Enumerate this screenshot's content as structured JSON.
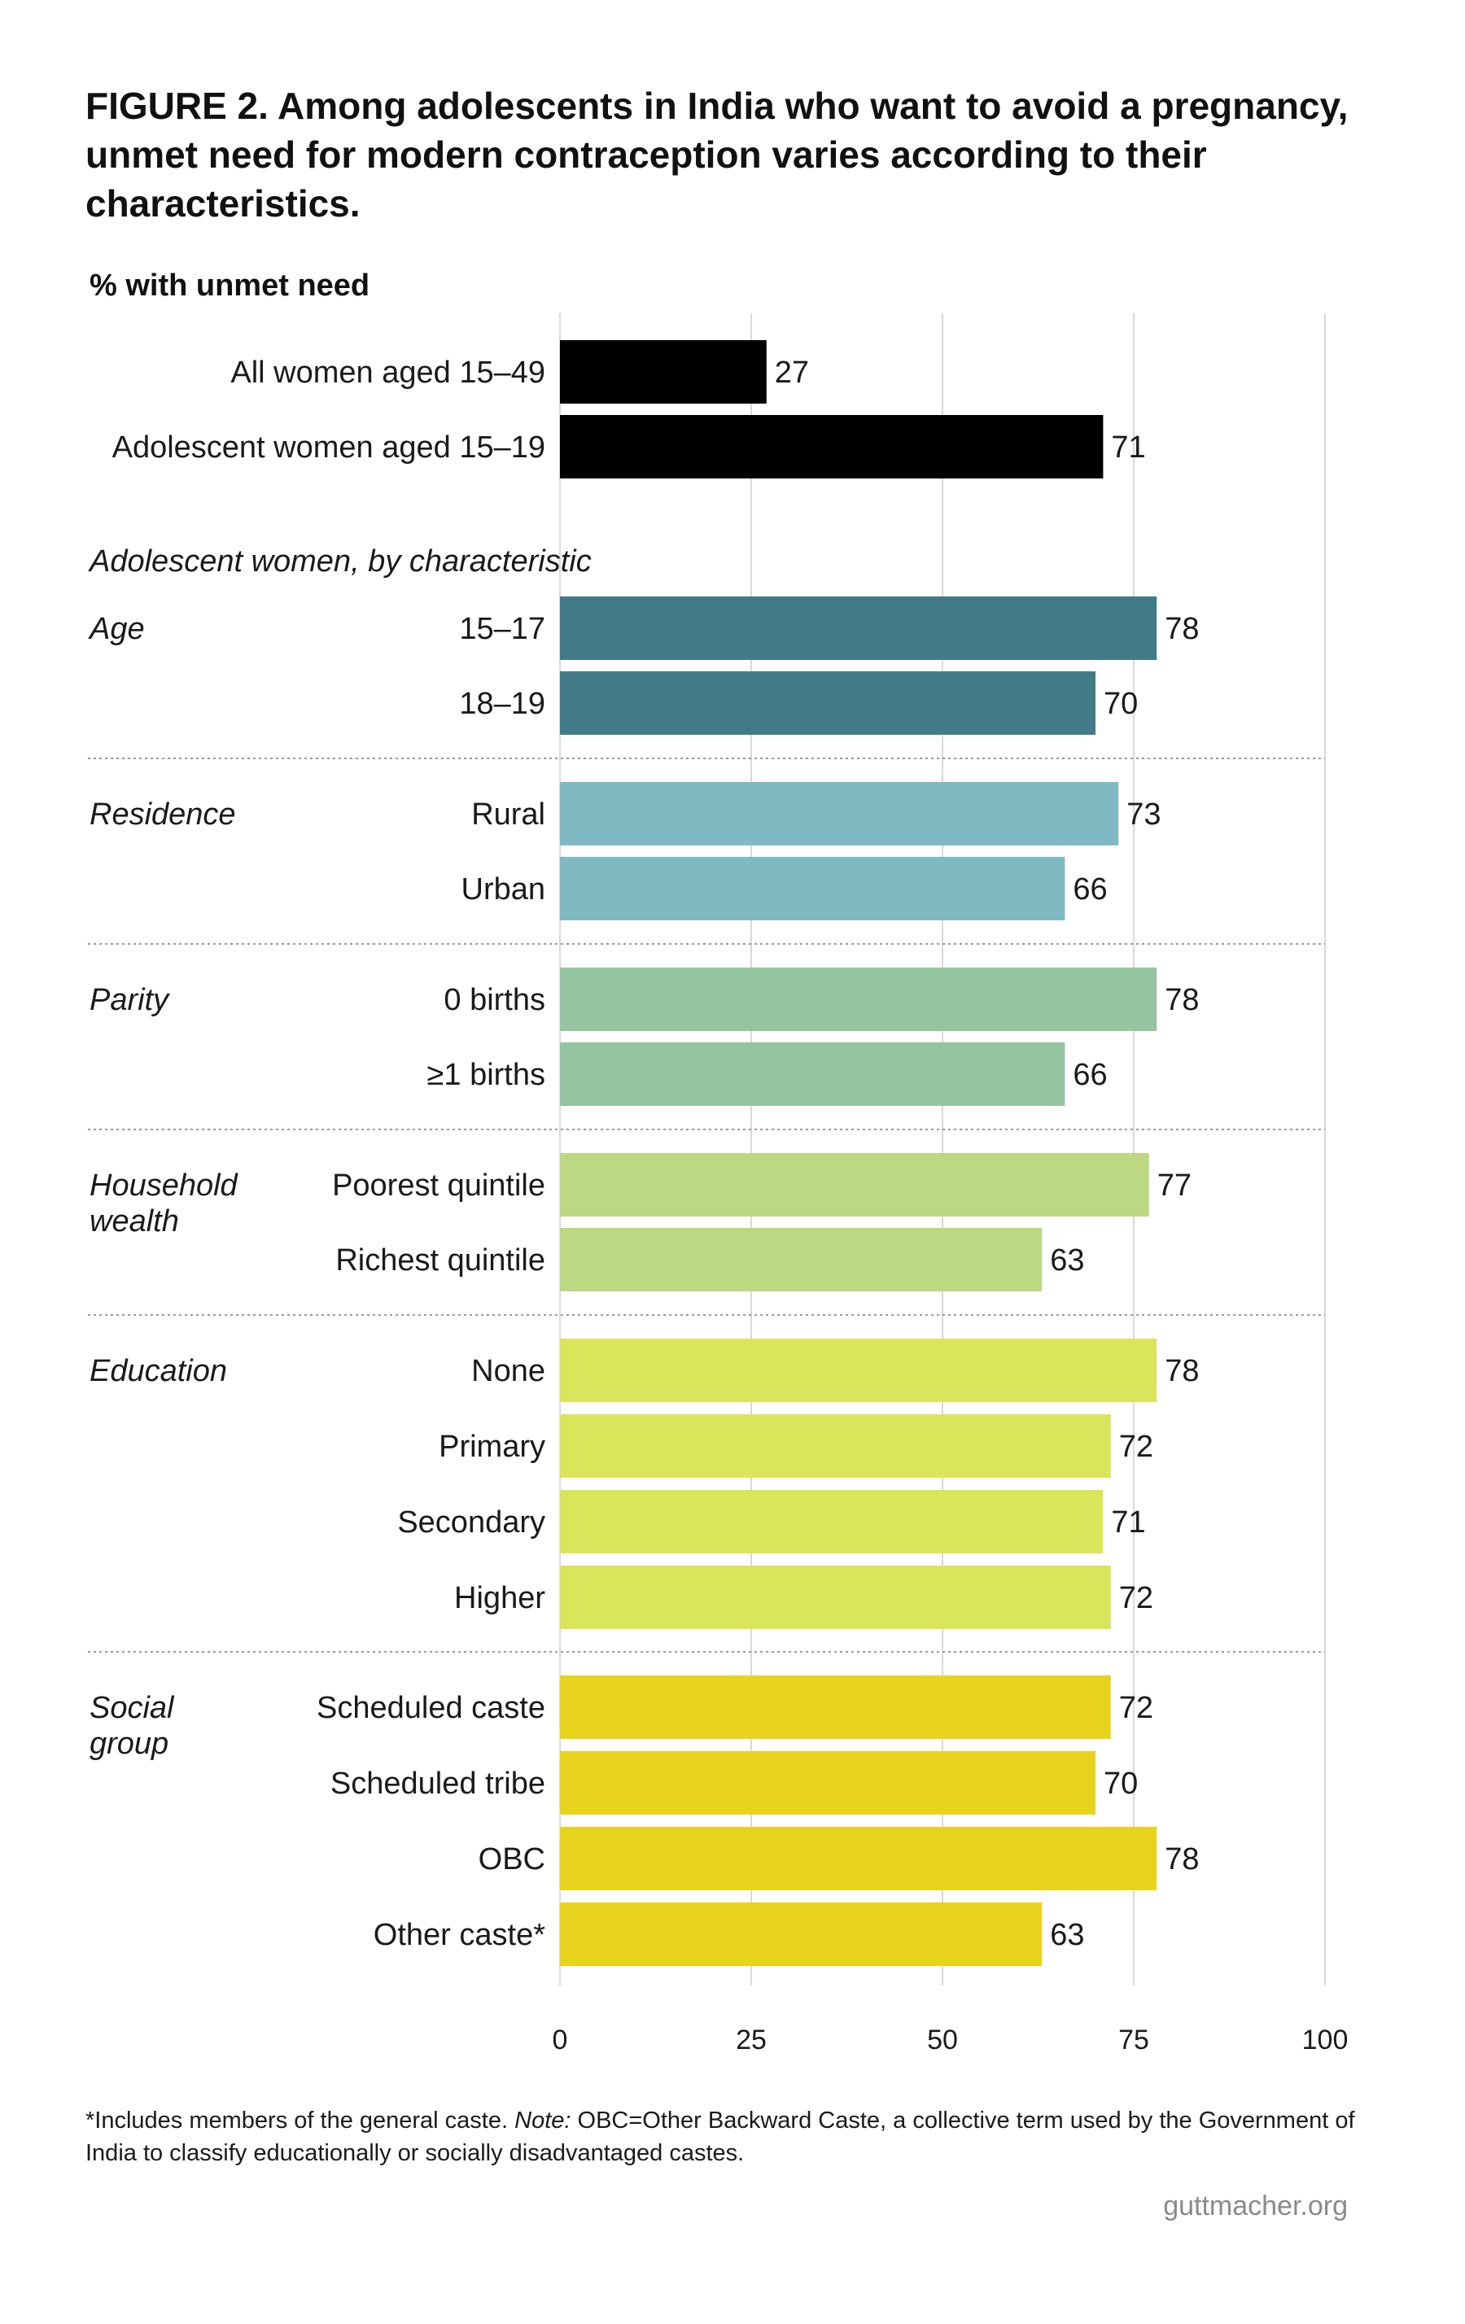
{
  "title": "FIGURE 2. Among adolescents in India who want to avoid a pregnancy, unmet need for modern contraception varies according to their characteristics.",
  "ylabel": "% with unmet need",
  "subheading": "Adolescent women, by characteristic",
  "footnote": {
    "part1": "*Includes members of the general caste. ",
    "note_label": "Note:",
    "part2": " OBC=Other Backward Caste, a collective term used by the Government of India to classify educationally or socially disadvantaged castes."
  },
  "source": "guttmacher.org",
  "chart_data": {
    "type": "bar",
    "orientation": "horizontal",
    "ylabel": "% with unmet need",
    "xlim": [
      0,
      100
    ],
    "xticks": [
      0,
      25,
      50,
      75,
      100
    ],
    "grid": true,
    "groups": [
      {
        "name": "",
        "color": "#000000",
        "bars": [
          {
            "label": "All women aged 15–49",
            "value": 27
          },
          {
            "label": "Adolescent women aged 15–19",
            "value": 71
          }
        ]
      },
      {
        "name": "Age",
        "color": "#407b87",
        "bars": [
          {
            "label": "15–17",
            "value": 78
          },
          {
            "label": "18–19",
            "value": 70
          }
        ]
      },
      {
        "name": "Residence",
        "color": "#7fbac2",
        "bars": [
          {
            "label": "Rural",
            "value": 73
          },
          {
            "label": "Urban",
            "value": 66
          }
        ]
      },
      {
        "name": "Parity",
        "color": "#95c4a0",
        "bars": [
          {
            "label": "0 births",
            "value": 78
          },
          {
            "label": "≥1 births",
            "value": 66
          }
        ]
      },
      {
        "name": "Household wealth",
        "color": "#bcd882",
        "bars": [
          {
            "label": "Poorest quintile",
            "value": 77
          },
          {
            "label": "Richest quintile",
            "value": 63
          }
        ]
      },
      {
        "name": "Education",
        "color": "#dae55b",
        "bars": [
          {
            "label": "None",
            "value": 78
          },
          {
            "label": "Primary",
            "value": 72
          },
          {
            "label": "Secondary",
            "value": 71
          },
          {
            "label": "Higher",
            "value": 72
          }
        ]
      },
      {
        "name": "Social group",
        "color": "#e8d31c",
        "bars": [
          {
            "label": "Scheduled caste",
            "value": 72
          },
          {
            "label": "Scheduled tribe",
            "value": 70
          },
          {
            "label": "OBC",
            "value": 78
          },
          {
            "label": "Other caste*",
            "value": 63
          }
        ]
      }
    ]
  }
}
